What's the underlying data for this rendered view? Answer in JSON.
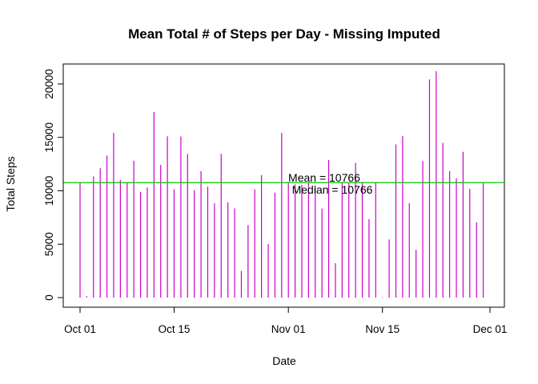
{
  "chart_data": {
    "type": "bar",
    "title": "Mean Total # of Steps per Day - Missing Imputed",
    "xlabel": "Date",
    "ylabel": "Total Steps",
    "x_ticks": [
      {
        "label": "Oct 01",
        "day": 0
      },
      {
        "label": "Oct 15",
        "day": 14
      },
      {
        "label": "Nov 01",
        "day": 31
      },
      {
        "label": "Nov 15",
        "day": 45
      },
      {
        "label": "Dec 01",
        "day": 61
      }
    ],
    "y_ticks": [
      0,
      5000,
      10000,
      15000,
      20000
    ],
    "xlim": [
      0,
      61
    ],
    "ylim": [
      0,
      21194
    ],
    "days": [
      0,
      1,
      2,
      3,
      4,
      5,
      6,
      7,
      8,
      9,
      10,
      11,
      12,
      13,
      14,
      15,
      16,
      17,
      18,
      19,
      20,
      21,
      22,
      23,
      24,
      25,
      26,
      27,
      28,
      29,
      30,
      31,
      32,
      33,
      34,
      35,
      36,
      37,
      38,
      39,
      40,
      41,
      42,
      43,
      44,
      45,
      46,
      47,
      48,
      49,
      50,
      51,
      52,
      53,
      54,
      55,
      56,
      57,
      58,
      59,
      60
    ],
    "values": [
      10766,
      126,
      11352,
      12116,
      13294,
      15420,
      11015,
      10766,
      12811,
      9900,
      10304,
      17382,
      12426,
      15098,
      10139,
      15084,
      13452,
      10056,
      11829,
      10395,
      8821,
      13460,
      8918,
      8355,
      2492,
      6778,
      10119,
      11458,
      5018,
      9819,
      15414,
      10766,
      10600,
      10571,
      10766,
      10439,
      8334,
      12883,
      3219,
      10766,
      10766,
      12608,
      10765,
      7336,
      10766,
      41,
      5441,
      14339,
      15110,
      8841,
      4472,
      12787,
      20427,
      21194,
      14478,
      11834,
      11162,
      13646,
      10183,
      7047,
      10766
    ],
    "series_color": "#cc00cc",
    "reference_line": {
      "value": 10766,
      "color": "#00cc00"
    },
    "annotations": {
      "mean": "Mean = 10766",
      "median": "Median = 10766"
    },
    "grid": false,
    "legend": "none"
  }
}
